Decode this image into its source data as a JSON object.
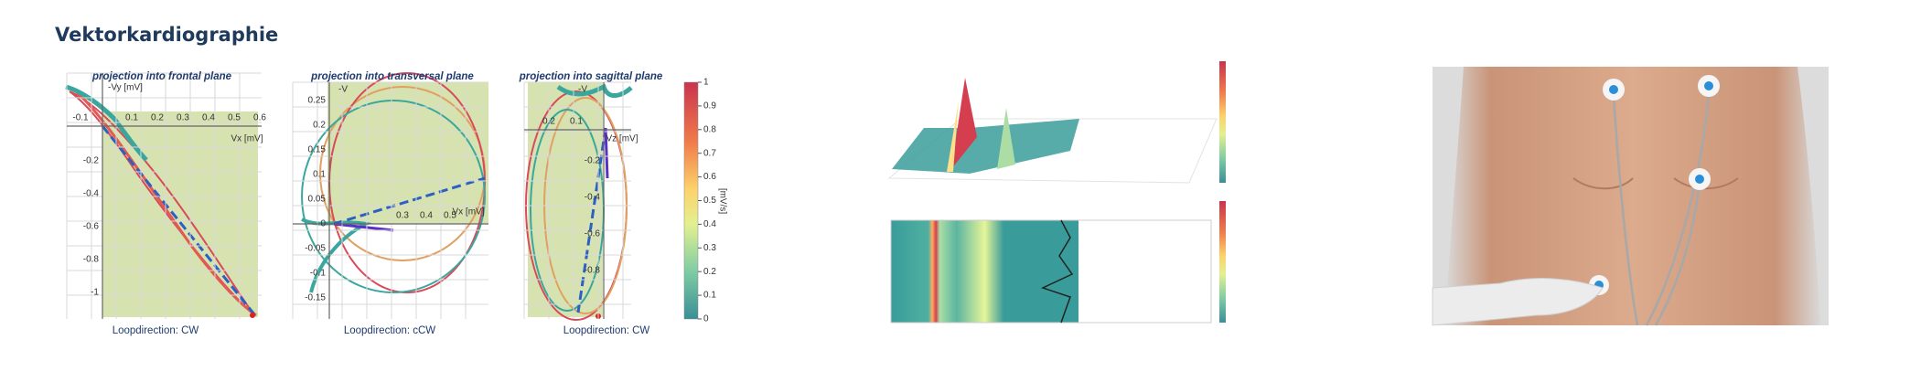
{
  "header": {
    "title": "Vektorkardiographie"
  },
  "vcg": {
    "frontal": {
      "title": "projection into frontal plane",
      "x_label": "Vx [mV]",
      "y_label": "-Vy [mV]",
      "x_ticks": [
        "-0.1",
        "0.1",
        "0.2",
        "0.3",
        "0.4",
        "0.5",
        "0.6"
      ],
      "y_ticks": [
        "-0.2",
        "-0.4",
        "-0.6",
        "-0.8",
        "-1"
      ],
      "loop": "Loopdirection: CW"
    },
    "transversal": {
      "title": "projection into transversal plane",
      "x_label": "Vx [mV]",
      "y_label": "-V",
      "x_ticks": [
        "0.3",
        "0.4",
        "0.5"
      ],
      "y_ticks": [
        "0.25",
        "0.2",
        "0.15",
        "0.1",
        "0.05",
        "0",
        "-0.05",
        "-0.1",
        "-0.15"
      ],
      "loop": "Loopdirection: cCW"
    },
    "sagittal": {
      "title": "projection into sagittal plane",
      "x_label": "Vz [mV]",
      "y_label": "-V",
      "x_ticks": [
        "0.2",
        "0.1"
      ],
      "y_ticks": [
        "-0.2",
        "-0.4",
        "-0.6",
        "-0.8"
      ],
      "loop": "Loopdirection: CW"
    },
    "colorbar": {
      "label": "[mV/s]",
      "ticks": [
        "1",
        "0.9",
        "0.8",
        "0.7",
        "0.6",
        "0.5",
        "0.4",
        "0.3",
        "0.2",
        "0.1",
        "0"
      ]
    }
  }
}
